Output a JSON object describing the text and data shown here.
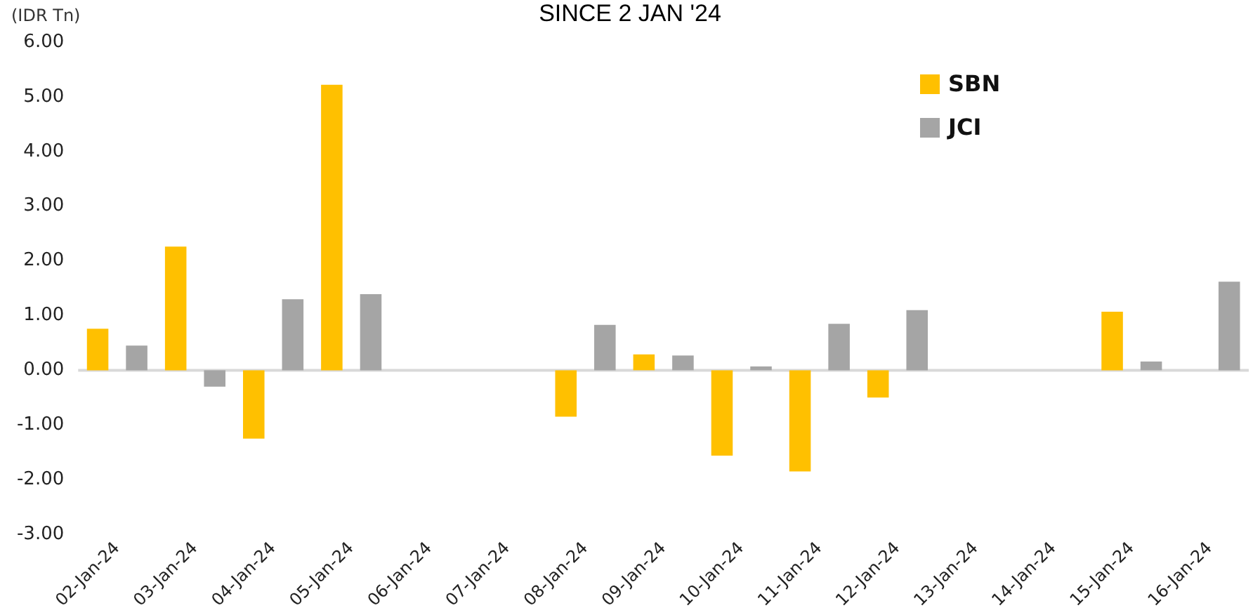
{
  "chart_data": {
    "type": "bar",
    "title": "SINCE 2 JAN '24",
    "ylabel": "(IDR Tn)",
    "categories": [
      "02-Jan-24",
      "03-Jan-24",
      "04-Jan-24",
      "05-Jan-24",
      "06-Jan-24",
      "07-Jan-24",
      "08-Jan-24",
      "09-Jan-24",
      "10-Jan-24",
      "11-Jan-24",
      "12-Jan-24",
      "13-Jan-24",
      "14-Jan-24",
      "15-Jan-24",
      "16-Jan-24"
    ],
    "series": [
      {
        "name": "SBN",
        "color": "#ffc000",
        "values": [
          0.76,
          2.26,
          -1.25,
          5.22,
          null,
          null,
          -0.85,
          0.29,
          -1.56,
          -1.85,
          -0.5,
          null,
          null,
          1.07,
          null
        ]
      },
      {
        "name": "JCI",
        "color": "#a5a5a5",
        "values": [
          0.45,
          -0.3,
          1.3,
          1.39,
          null,
          null,
          0.83,
          0.27,
          0.07,
          0.85,
          1.1,
          null,
          null,
          0.16,
          1.62
        ]
      }
    ],
    "ylim": [
      -3,
      6
    ],
    "yticks": [
      {
        "value": -3,
        "label": "-3.00"
      },
      {
        "value": -2,
        "label": "-2.00"
      },
      {
        "value": -1,
        "label": "-1.00"
      },
      {
        "value": 0,
        "label": "0.00"
      },
      {
        "value": 1,
        "label": "1.00"
      },
      {
        "value": 2,
        "label": "2.00"
      },
      {
        "value": 3,
        "label": "3.00"
      },
      {
        "value": 4,
        "label": "4.00"
      },
      {
        "value": 5,
        "label": "5.00"
      },
      {
        "value": 6,
        "label": "6.00"
      }
    ],
    "ref_lines": [
      {
        "axis": "y",
        "value": 0,
        "color": "#d9d9d9"
      }
    ],
    "grid": false,
    "legend": "top right"
  }
}
